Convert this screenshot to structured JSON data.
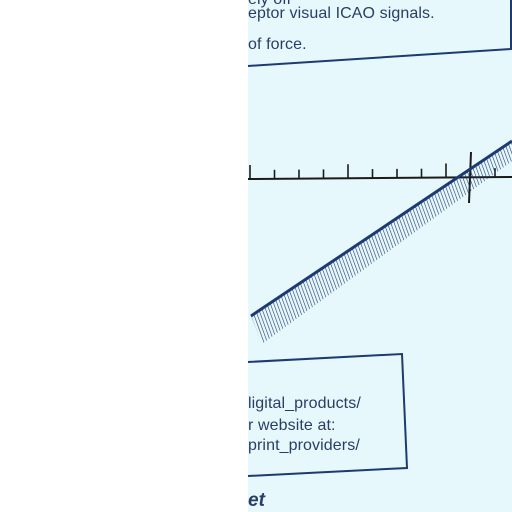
{
  "notice_top": {
    "line_cut": "ely ofr",
    "line_1": "eptor visual ICAO signals.",
    "line_2": "of force."
  },
  "resources_box": {
    "line_1": "ligital_products/",
    "line_2": "r website at:",
    "line_3": "print_providers/"
  },
  "section_heading_fragment": "et",
  "colors": {
    "paper": "#e6f8fb",
    "ink": "#283e66",
    "frame": "#1e3a73"
  }
}
